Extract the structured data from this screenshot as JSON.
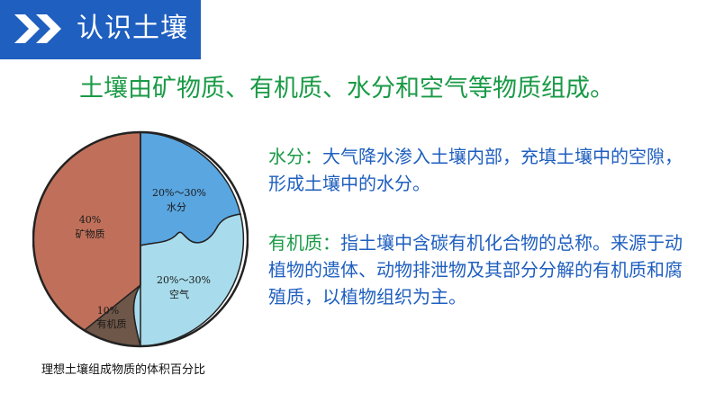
{
  "header": {
    "title": "认识土壤",
    "color": "#1f5fbf"
  },
  "headline": "土壤由矿物质、有机质、水分和空气等物质组成。",
  "paragraphs": {
    "water": {
      "label": "水分：",
      "text": "大气降水渗入土壤内部，充填土壤中的空隙，形成土壤中的水分。"
    },
    "organic": {
      "label": "有机质：",
      "text": "指土壤中含碳有机化合物的总称。来源于动植物的遗体、动物排泄物及其部分分解的有机质和腐殖质，以植物组织为主。"
    }
  },
  "pie": {
    "slices": [
      {
        "name": "矿物质",
        "percent": "40%",
        "color": "#c0705a"
      },
      {
        "name": "水分",
        "percent": "20%～30%",
        "color": "#5aa6e0"
      },
      {
        "name": "空气",
        "percent": "20%～30%",
        "color": "#a8dcec"
      },
      {
        "name": "有机质",
        "percent": "10%",
        "color": "#6e5648"
      }
    ]
  },
  "caption": "理想土壤组成物质的体积百分比",
  "colors": {
    "green": "#1a9a46",
    "blue": "#1f5fbf"
  }
}
